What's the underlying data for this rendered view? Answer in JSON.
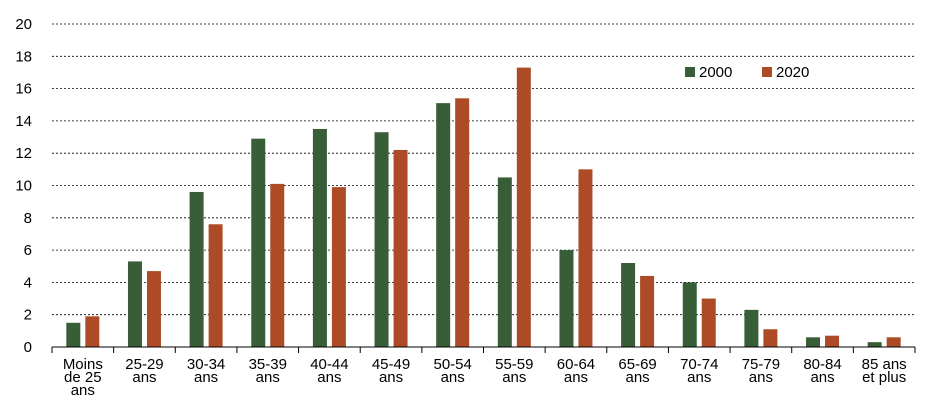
{
  "chart_data": {
    "type": "bar",
    "title": "",
    "xlabel": "",
    "ylabel": "",
    "ylim": [
      0,
      20
    ],
    "yticks": [
      "0",
      "2",
      "4",
      "6",
      "8",
      "10",
      "12",
      "14",
      "16",
      "18",
      "20"
    ],
    "grid": "horizontal dashed",
    "legend_position": "top-right",
    "categories": [
      [
        "Moins",
        "de 25",
        "ans"
      ],
      [
        "25-29",
        "ans"
      ],
      [
        "30-34",
        "ans"
      ],
      [
        "35-39",
        "ans"
      ],
      [
        "40-44",
        "ans"
      ],
      [
        "45-49",
        "ans"
      ],
      [
        "50-54",
        "ans"
      ],
      [
        "55-59",
        "ans"
      ],
      [
        "60-64",
        "ans"
      ],
      [
        "65-69",
        "ans"
      ],
      [
        "70-74",
        "ans"
      ],
      [
        "75-79",
        "ans"
      ],
      [
        "80-84",
        "ans"
      ],
      [
        "85 ans",
        "et plus"
      ]
    ],
    "series": [
      {
        "name": "2000",
        "color": "#375e36",
        "values": [
          1.5,
          5.3,
          9.6,
          12.9,
          13.5,
          13.3,
          15.1,
          10.5,
          6.0,
          5.2,
          4.0,
          2.3,
          0.6,
          0.3
        ]
      },
      {
        "name": "2020",
        "color": "#ae4b27",
        "values": [
          1.9,
          4.7,
          7.6,
          10.1,
          9.9,
          12.2,
          15.4,
          17.3,
          11.0,
          4.4,
          3.0,
          1.1,
          0.7,
          0.6
        ]
      }
    ]
  }
}
